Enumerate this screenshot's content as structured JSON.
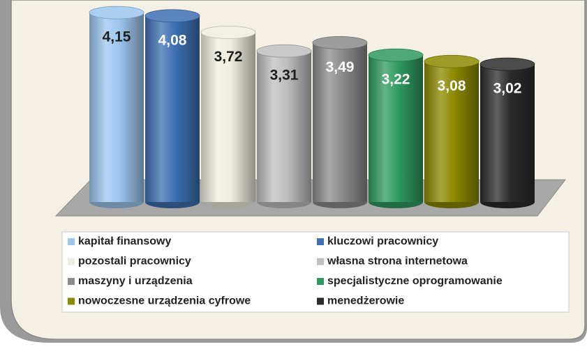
{
  "chart_data": {
    "type": "bar",
    "categories": [
      "kapitał finansowy",
      "kluczowi pracownicy",
      "pozostali pracownicy",
      "własna strona internetowa",
      "maszyny i urządzenia",
      "specjalistyczne oprogramowanie",
      "nowoczesne urządzenia cyfrowe",
      "menedżerowie"
    ],
    "values": [
      4.15,
      4.08,
      3.72,
      3.31,
      3.49,
      3.22,
      3.08,
      3.02
    ],
    "value_labels": [
      "4,15",
      "4,08",
      "3,72",
      "3,31",
      "3,49",
      "3,22",
      "3,08",
      "3,02"
    ],
    "colors": [
      "#9cc6ef",
      "#3d6fb1",
      "#eeeddf",
      "#bfbfbf",
      "#8b8b8b",
      "#2f9a5f",
      "#8c8800",
      "#2b2b2b"
    ],
    "legend": "bottom"
  }
}
